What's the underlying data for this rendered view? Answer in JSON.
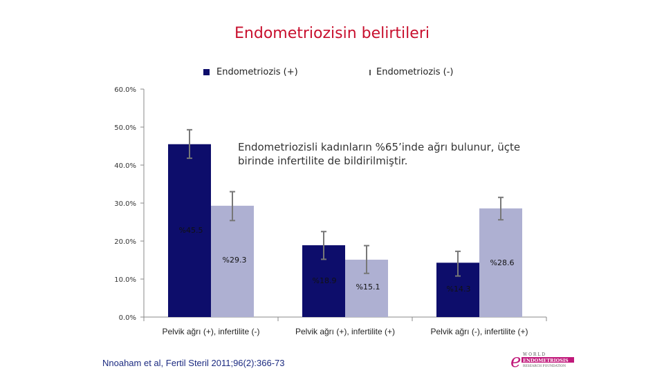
{
  "title": "Endometriozisin belirtileri",
  "legend": [
    {
      "label": "Endometriozis (+)",
      "color": "#0d0d6b"
    },
    {
      "label": "Endometriozis (-)",
      "color": "#aeb0d2"
    }
  ],
  "note": "Endometriozisli kadınların %65’inde ağrı bulunur, üçte birinde infertilite de bildirilmiştir.",
  "citation": "Nnoaham et al, Fertil Steril 2011;96(2):366-73",
  "logo": {
    "line1": "W O R L D",
    "line2": "ENDOMETRIOSIS",
    "line3": "RESEARCH FOUNDATION"
  },
  "chart_data": {
    "type": "bar",
    "categories": [
      "Pelvik ağrı (+), infertilite (-)",
      "Pelvik ağrı (+), infertilite (+)",
      "Pelvik ağrı (-), infertilite (+)"
    ],
    "series": [
      {
        "name": "Endometriozis (+)",
        "color": "#0d0d6b",
        "values": [
          45.5,
          18.9,
          14.3
        ],
        "error_low": [
          41.8,
          15.2,
          10.8
        ],
        "error_high": [
          49.3,
          22.5,
          17.3
        ],
        "labels": [
          "%45.5",
          "%18.9",
          "%14.3"
        ]
      },
      {
        "name": "Endometriozis (-)",
        "color": "#aeb0d2",
        "values": [
          29.3,
          15.1,
          28.6
        ],
        "error_low": [
          25.4,
          11.5,
          25.6
        ],
        "error_high": [
          33.0,
          18.8,
          31.5
        ],
        "labels": [
          "%29.3",
          "%15.1",
          "%28.6"
        ]
      }
    ],
    "y_ticks": [
      "0.0%",
      "10.0%",
      "20.0%",
      "30.0%",
      "40.0%",
      "50.0%",
      "60.0%"
    ],
    "ylim": [
      0,
      60
    ],
    "legend_position": "top",
    "grid": false
  }
}
